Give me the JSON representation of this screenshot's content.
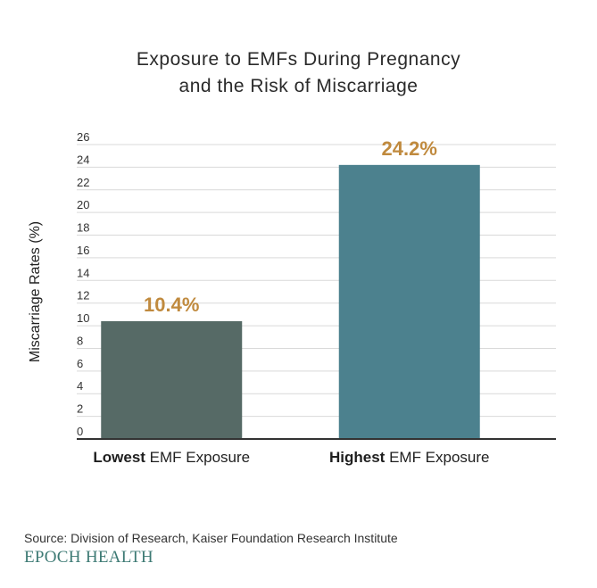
{
  "chart_data": {
    "type": "bar",
    "title_lines": [
      "Exposure to EMFs During Pregnancy",
      "and the Risk of Miscarriage"
    ],
    "ylabel": "Miscarriage Rates (%)",
    "ylim": [
      0,
      26
    ],
    "yticks": [
      0,
      2,
      4,
      6,
      8,
      10,
      12,
      14,
      16,
      18,
      20,
      22,
      24,
      26
    ],
    "grid": true,
    "categories": [
      {
        "bold": "Lowest",
        "rest": " EMF Exposure"
      },
      {
        "bold": "Highest",
        "rest": " EMF Exposure"
      }
    ],
    "values": [
      10.4,
      24.2
    ],
    "value_labels": [
      "10.4%",
      "24.2%"
    ],
    "colors": {
      "bars": [
        "#566a66",
        "#4c818e"
      ],
      "value_label": "#c08a3e",
      "grid": "#d9d9d9",
      "axis": "#333333"
    }
  },
  "footer": {
    "source": "Source: Division of Research, Kaiser Foundation Research Institute",
    "brand": "EPOCH HEALTH"
  }
}
